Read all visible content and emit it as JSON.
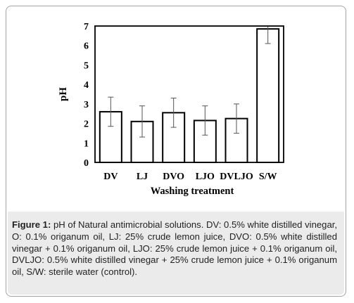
{
  "chart_data": {
    "type": "bar",
    "categories": [
      "DV",
      "LJ",
      "DVO",
      "LJO",
      "DVLJO",
      "S/W"
    ],
    "values": [
      2.6,
      2.1,
      2.55,
      2.15,
      2.25,
      6.85
    ],
    "error": [
      0.75,
      0.8,
      0.75,
      0.75,
      0.75,
      0.75
    ],
    "title": "",
    "xlabel": "Washing treatment",
    "ylabel": "pH",
    "ylim": [
      0,
      7
    ],
    "yticks": [
      "0",
      "1",
      "2",
      "3",
      "4",
      "5",
      "6",
      "7"
    ],
    "grid": false,
    "legend": "none",
    "colors": {
      "bar_fill": "#ffffff",
      "bar_stroke": "#000000",
      "error_bar": "#555555",
      "axis": "#000000"
    }
  },
  "caption": {
    "label": "Figure 1:",
    "text": " pH of Natural antimicrobial solutions. DV: 0.5% white distilled vinegar, O: 0.1% origanum oil, LJ: 25% crude lemon juice, DVO: 0.5% white distilled vinegar + 0.1% origanum oil, LJO: 25% crude lemon juice + 0.1% origanum oil, DVLJO: 0.5% white distilled vinegar + 25% crude lemon juice + 0.1% origanum oil, S/W: sterile water (control)."
  },
  "colors": {
    "frame_border": "#a7a1a8",
    "caption_background": "#ebebeb",
    "caption_text": "#222222"
  }
}
